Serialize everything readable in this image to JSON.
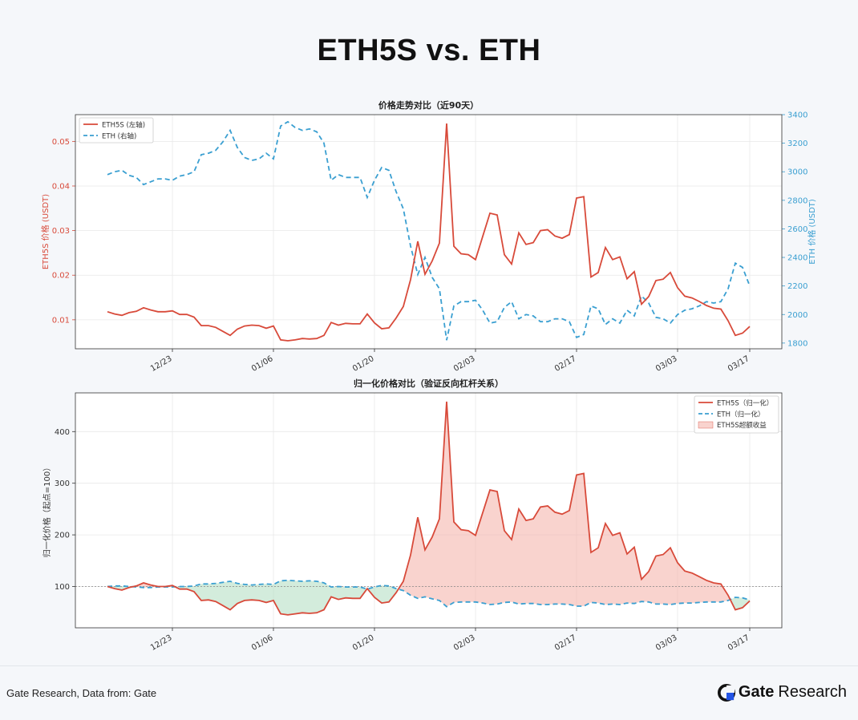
{
  "header": {
    "title": "ETH5S vs. ETH"
  },
  "footer": {
    "source": "Gate Research, Data from: Gate",
    "brand_bold": "Gate",
    "brand_light": "Research"
  },
  "colors": {
    "eth5s": "#d84a3a",
    "eth": "#3a9fd1",
    "excess_pos": "#f5b5ad",
    "excess_neg": "#b5e0c5"
  },
  "chart_data": [
    {
      "type": "line",
      "title": "价格走势对比（近90天）",
      "xlabel": "",
      "ylabel": "ETH5S 价格 (USDT)",
      "y2label": "ETH 价格 (USDT)",
      "ylim": [
        0.0035,
        0.056
      ],
      "y2lim": [
        1760,
        3400
      ],
      "yticks": [
        0.01,
        0.02,
        0.03,
        0.04,
        0.05
      ],
      "yticklabels": [
        "0.01",
        "0.02",
        "0.03",
        "0.04",
        "0.05"
      ],
      "y2ticks": [
        1800,
        2000,
        2200,
        2400,
        2600,
        2800,
        3000,
        3200,
        3400
      ],
      "xticklabels": [
        "12/23",
        "01/06",
        "01/20",
        "02/03",
        "02/17",
        "03/03",
        "03/17"
      ],
      "legend_position": "top-left",
      "grid": true,
      "series": [
        {
          "name": "ETH5S (左轴)",
          "axis": "left",
          "style": "solid",
          "values": [
            0.0118,
            0.0113,
            0.011,
            0.0116,
            0.0119,
            0.0127,
            0.0122,
            0.0118,
            0.0118,
            0.012,
            0.0112,
            0.0112,
            0.0106,
            0.0087,
            0.0087,
            0.0083,
            0.0074,
            0.0065,
            0.0079,
            0.0086,
            0.0088,
            0.0087,
            0.0081,
            0.0086,
            0.0055,
            0.0053,
            0.0055,
            0.0058,
            0.0057,
            0.0058,
            0.0065,
            0.0094,
            0.0088,
            0.0092,
            0.0091,
            0.0091,
            0.0113,
            0.0093,
            0.008,
            0.0082,
            0.0104,
            0.013,
            0.019,
            0.0276,
            0.0202,
            0.0232,
            0.0272,
            0.054,
            0.0265,
            0.0248,
            0.0246,
            0.0235,
            0.0287,
            0.0339,
            0.0335,
            0.0246,
            0.0225,
            0.0295,
            0.0269,
            0.0273,
            0.03,
            0.0302,
            0.0288,
            0.0283,
            0.0291,
            0.0373,
            0.0376,
            0.0196,
            0.0206,
            0.0262,
            0.0235,
            0.0241,
            0.0192,
            0.0208,
            0.0135,
            0.0152,
            0.0188,
            0.0191,
            0.0206,
            0.0172,
            0.0153,
            0.0149,
            0.0141,
            0.0132,
            0.0126,
            0.0124,
            0.0098,
            0.0065,
            0.007,
            0.0085
          ]
        },
        {
          "name": "ETH (右轴)",
          "axis": "right",
          "style": "dashed",
          "values": [
            2980,
            3000,
            3010,
            2975,
            2960,
            2910,
            2930,
            2950,
            2950,
            2940,
            2970,
            2980,
            3000,
            3120,
            3130,
            3150,
            3210,
            3290,
            3170,
            3100,
            3080,
            3090,
            3130,
            3090,
            3320,
            3350,
            3310,
            3290,
            3300,
            3280,
            3200,
            2940,
            2980,
            2960,
            2960,
            2960,
            2820,
            2940,
            3030,
            3010,
            2860,
            2740,
            2480,
            2280,
            2400,
            2260,
            2180,
            1820,
            2060,
            2090,
            2090,
            2100,
            2030,
            1940,
            1950,
            2050,
            2090,
            1970,
            2000,
            1990,
            1950,
            1950,
            1970,
            1970,
            1950,
            1840,
            1860,
            2060,
            2040,
            1930,
            1970,
            1940,
            2030,
            1990,
            2130,
            2080,
            1980,
            1970,
            1940,
            2000,
            2030,
            2040,
            2060,
            2090,
            2080,
            2090,
            2180,
            2360,
            2330,
            2200
          ]
        }
      ]
    },
    {
      "type": "area",
      "title": "归一化价格对比（验证反向杠杆关系）",
      "xlabel": "",
      "ylabel": "归一化价格（起点=100）",
      "ylim": [
        20,
        475
      ],
      "yticks": [
        100,
        200,
        300,
        400
      ],
      "yticklabels": [
        "100",
        "200",
        "300",
        "400"
      ],
      "baseline": 100,
      "xticklabels": [
        "12/23",
        "01/06",
        "01/20",
        "02/03",
        "02/17",
        "03/03",
        "03/17"
      ],
      "legend_position": "top-right",
      "grid": true,
      "series": [
        {
          "name": "ETH5S（归一化）",
          "style": "solid",
          "values": [
            100,
            96,
            93,
            98,
            101,
            107,
            103,
            100,
            100,
            102,
            95,
            95,
            90,
            73,
            74,
            71,
            63,
            55,
            67,
            73,
            74,
            73,
            69,
            73,
            47,
            45,
            47,
            49,
            48,
            49,
            55,
            80,
            75,
            78,
            77,
            77,
            96,
            79,
            68,
            70,
            88,
            110,
            161,
            234,
            171,
            196,
            231,
            458,
            225,
            210,
            208,
            199,
            243,
            287,
            284,
            208,
            191,
            250,
            228,
            231,
            254,
            256,
            244,
            240,
            247,
            316,
            319,
            166,
            175,
            222,
            199,
            204,
            163,
            176,
            114,
            129,
            159,
            162,
            175,
            146,
            130,
            126,
            119,
            112,
            107,
            105,
            83,
            55,
            59,
            72
          ]
        },
        {
          "name": "ETH（归一化）",
          "style": "dashed",
          "values": [
            100,
            101,
            101,
            100,
            99,
            98,
            98,
            99,
            99,
            99,
            100,
            100,
            101,
            105,
            105,
            106,
            108,
            110,
            106,
            104,
            103,
            104,
            105,
            104,
            111,
            112,
            111,
            110,
            111,
            110,
            107,
            99,
            100,
            99,
            99,
            99,
            95,
            99,
            102,
            101,
            96,
            92,
            83,
            77,
            80,
            76,
            73,
            61,
            69,
            70,
            70,
            70,
            68,
            65,
            66,
            69,
            70,
            66,
            67,
            67,
            65,
            65,
            66,
            66,
            65,
            62,
            62,
            69,
            68,
            65,
            66,
            65,
            68,
            67,
            71,
            70,
            66,
            66,
            65,
            67,
            68,
            68,
            69,
            70,
            70,
            70,
            73,
            79,
            78,
            74
          ]
        }
      ],
      "legend_extra": "ETH5S超额收益"
    }
  ]
}
